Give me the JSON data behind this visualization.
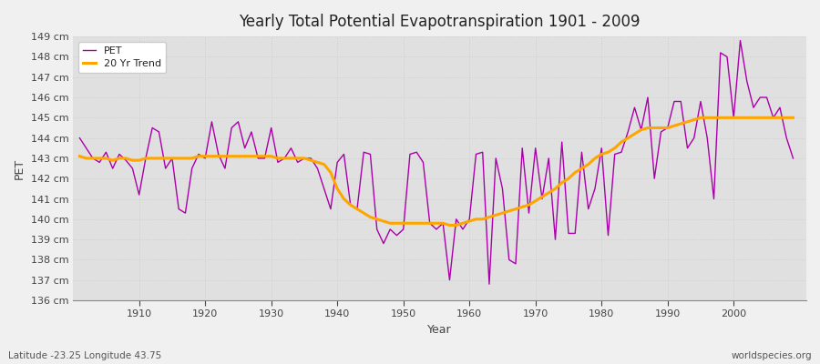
{
  "title": "Yearly Total Potential Evapotranspiration 1901 - 2009",
  "xlabel": "Year",
  "ylabel": "PET",
  "bottom_left": "Latitude -23.25 Longitude 43.75",
  "bottom_right": "worldspecies.org",
  "pet_color": "#aa00aa",
  "trend_color": "#ffa500",
  "background_color": "#f0f0f0",
  "plot_bg_color": "#e0e0e0",
  "ylim": [
    136,
    149
  ],
  "yticks": [
    136,
    137,
    138,
    139,
    140,
    141,
    142,
    143,
    144,
    145,
    146,
    147,
    148,
    149
  ],
  "years": [
    1901,
    1902,
    1903,
    1904,
    1905,
    1906,
    1907,
    1908,
    1909,
    1910,
    1911,
    1912,
    1913,
    1914,
    1915,
    1916,
    1917,
    1918,
    1919,
    1920,
    1921,
    1922,
    1923,
    1924,
    1925,
    1926,
    1927,
    1928,
    1929,
    1930,
    1931,
    1932,
    1933,
    1934,
    1935,
    1936,
    1937,
    1938,
    1939,
    1940,
    1941,
    1942,
    1943,
    1944,
    1945,
    1946,
    1947,
    1948,
    1949,
    1950,
    1951,
    1952,
    1953,
    1954,
    1955,
    1956,
    1957,
    1958,
    1959,
    1960,
    1961,
    1962,
    1963,
    1964,
    1965,
    1966,
    1967,
    1968,
    1969,
    1970,
    1971,
    1972,
    1973,
    1974,
    1975,
    1976,
    1977,
    1978,
    1979,
    1980,
    1981,
    1982,
    1983,
    1984,
    1985,
    1986,
    1987,
    1988,
    1989,
    1990,
    1991,
    1992,
    1993,
    1994,
    1995,
    1996,
    1997,
    1998,
    1999,
    2000,
    2001,
    2002,
    2003,
    2004,
    2005,
    2006,
    2007,
    2008,
    2009
  ],
  "pet": [
    144.0,
    143.5,
    143.0,
    142.8,
    143.3,
    142.5,
    143.2,
    142.9,
    142.5,
    141.2,
    143.0,
    144.5,
    144.3,
    142.5,
    143.0,
    140.5,
    140.3,
    142.5,
    143.2,
    143.0,
    144.8,
    143.2,
    142.5,
    144.5,
    144.8,
    143.5,
    144.3,
    143.0,
    143.0,
    144.5,
    142.8,
    143.0,
    143.5,
    142.8,
    143.0,
    143.0,
    142.5,
    141.5,
    140.5,
    142.8,
    143.2,
    140.7,
    140.5,
    143.3,
    143.2,
    139.5,
    138.8,
    139.5,
    139.2,
    139.5,
    143.2,
    143.3,
    142.8,
    139.8,
    139.5,
    139.8,
    137.0,
    140.0,
    139.5,
    140.0,
    143.2,
    143.3,
    136.8,
    143.0,
    141.5,
    138.0,
    137.8,
    143.5,
    140.3,
    143.5,
    141.0,
    143.0,
    139.0,
    143.8,
    139.3,
    139.3,
    143.3,
    140.5,
    141.5,
    143.5,
    139.2,
    143.2,
    143.3,
    144.3,
    145.5,
    144.4,
    146.0,
    142.0,
    144.3,
    144.5,
    145.8,
    145.8,
    143.5,
    144.0,
    145.8,
    144.0,
    141.0,
    148.2,
    148.0,
    145.0,
    148.8,
    146.8,
    145.5,
    146.0,
    146.0,
    145.0,
    145.5,
    144.0,
    143.0
  ],
  "trend": [
    143.1,
    143.0,
    143.0,
    143.0,
    143.0,
    142.9,
    143.0,
    143.0,
    142.9,
    142.9,
    143.0,
    143.0,
    143.0,
    143.0,
    143.0,
    143.0,
    143.0,
    143.0,
    143.1,
    143.1,
    143.1,
    143.1,
    143.1,
    143.1,
    143.1,
    143.1,
    143.1,
    143.1,
    143.1,
    143.1,
    143.0,
    143.0,
    143.0,
    143.0,
    143.0,
    142.9,
    142.8,
    142.7,
    142.3,
    141.5,
    141.0,
    140.7,
    140.5,
    140.3,
    140.1,
    140.0,
    139.9,
    139.8,
    139.8,
    139.8,
    139.8,
    139.8,
    139.8,
    139.8,
    139.8,
    139.8,
    139.7,
    139.7,
    139.8,
    139.9,
    140.0,
    140.0,
    140.1,
    140.2,
    140.3,
    140.4,
    140.5,
    140.6,
    140.7,
    140.9,
    141.1,
    141.3,
    141.5,
    141.8,
    142.0,
    142.3,
    142.5,
    142.7,
    143.0,
    143.2,
    143.3,
    143.5,
    143.8,
    144.0,
    144.2,
    144.4,
    144.5,
    144.5,
    144.5,
    144.5,
    144.6,
    144.7,
    144.8,
    144.9,
    145.0,
    145.0,
    145.0,
    145.0,
    145.0,
    145.0,
    145.0,
    145.0,
    145.0,
    145.0,
    145.0,
    145.0,
    145.0,
    145.0,
    145.0
  ]
}
